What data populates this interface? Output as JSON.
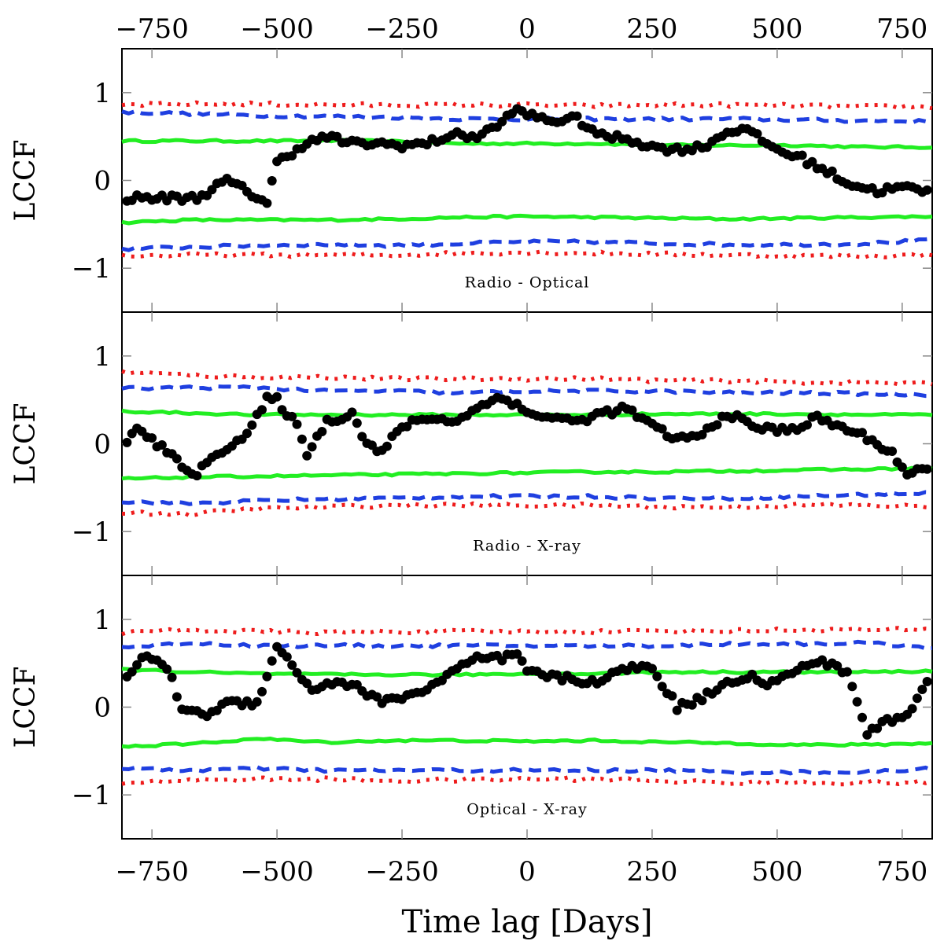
{
  "chart_data": {
    "type": "scatter",
    "xlabel": "Time lag [Days]",
    "xlim": [
      -810,
      810
    ],
    "ylim": [
      -1.5,
      1.5
    ],
    "x_ticks": [
      -750,
      -500,
      -250,
      0,
      250,
      500,
      750
    ],
    "x_tick_labels": [
      "−750",
      "−500",
      "−250",
      "0",
      "250",
      "500",
      "750"
    ],
    "y_ticks": [
      -1,
      0,
      1
    ],
    "y_tick_labels": [
      "−1",
      "0",
      "1"
    ],
    "colors": {
      "lccf": "#000000",
      "band_1sigma": "#22ee22",
      "band_2sigma": "#1f3fe0",
      "band_3sigma": "#ee1c1c"
    },
    "panels": [
      {
        "name": "radio-optical",
        "label": "Radio - Optical",
        "ylabel": "LCCF",
        "lccf": {
          "x": [
            -800,
            -660,
            -600,
            -520,
            -500,
            -450,
            -400,
            -350,
            -300,
            -250,
            -200,
            -150,
            -100,
            -50,
            -30,
            0,
            50,
            100,
            150,
            200,
            250,
            300,
            350,
            400,
            430,
            500,
            550,
            600,
            650,
            700,
            750,
            800
          ],
          "y": [
            -0.2,
            -0.2,
            0.0,
            -0.25,
            0.2,
            0.4,
            0.5,
            0.42,
            0.42,
            0.4,
            0.42,
            0.52,
            0.5,
            0.65,
            0.8,
            0.75,
            0.68,
            0.7,
            0.5,
            0.48,
            0.38,
            0.35,
            0.38,
            0.55,
            0.6,
            0.35,
            0.25,
            0.1,
            -0.05,
            -0.12,
            -0.08,
            -0.12
          ]
        },
        "band_1sigma": {
          "upper": [
            0.45,
            0.45,
            0.45,
            0.45,
            0.45,
            0.42,
            0.42,
            0.42,
            0.4,
            0.4,
            0.4,
            0.38,
            0.38
          ],
          "lower": [
            -0.48,
            -0.45,
            -0.45,
            -0.45,
            -0.44,
            -0.42,
            -0.41,
            -0.42,
            -0.43,
            -0.44,
            -0.43,
            -0.42,
            -0.41
          ]
        },
        "band_2sigma": {
          "upper": [
            0.78,
            0.76,
            0.74,
            0.73,
            0.72,
            0.7,
            0.7,
            0.7,
            0.7,
            0.7,
            0.69,
            0.68,
            0.67
          ],
          "lower": [
            -0.78,
            -0.76,
            -0.74,
            -0.73,
            -0.74,
            -0.72,
            -0.7,
            -0.7,
            -0.72,
            -0.73,
            -0.73,
            -0.72,
            -0.68
          ]
        },
        "band_3sigma": {
          "upper": [
            0.86,
            0.87,
            0.87,
            0.86,
            0.86,
            0.86,
            0.86,
            0.85,
            0.86,
            0.86,
            0.85,
            0.84,
            0.84
          ],
          "lower": [
            -0.86,
            -0.85,
            -0.85,
            -0.85,
            -0.85,
            -0.83,
            -0.82,
            -0.83,
            -0.84,
            -0.85,
            -0.86,
            -0.86,
            -0.85
          ]
        }
      },
      {
        "name": "radio-xray",
        "label": "Radio - X-ray",
        "ylabel": "LCCF",
        "lccf": {
          "x": [
            -800,
            -780,
            -750,
            -700,
            -660,
            -620,
            -560,
            -520,
            -500,
            -460,
            -440,
            -400,
            -350,
            -320,
            -290,
            -250,
            -200,
            -150,
            -100,
            -50,
            0,
            50,
            100,
            150,
            200,
            250,
            300,
            350,
            400,
            450,
            500,
            550,
            580,
            620,
            650,
            700,
            730,
            760,
            800
          ],
          "y": [
            0.05,
            0.15,
            0.05,
            -0.2,
            -0.35,
            -0.1,
            0.1,
            0.5,
            0.5,
            0.2,
            -0.1,
            0.25,
            0.35,
            0.0,
            -0.1,
            0.2,
            0.3,
            0.25,
            0.4,
            0.55,
            0.35,
            0.3,
            0.25,
            0.35,
            0.4,
            0.2,
            0.05,
            0.1,
            0.35,
            0.2,
            0.15,
            0.2,
            0.3,
            0.2,
            0.15,
            0.0,
            -0.1,
            -0.35,
            -0.3
          ]
        },
        "band_1sigma": {
          "upper": [
            0.37,
            0.35,
            0.33,
            0.33,
            0.33,
            0.33,
            0.33,
            0.33,
            0.34,
            0.34,
            0.34,
            0.33,
            0.33
          ],
          "lower": [
            -0.4,
            -0.38,
            -0.37,
            -0.36,
            -0.35,
            -0.34,
            -0.33,
            -0.32,
            -0.32,
            -0.31,
            -0.3,
            -0.29,
            -0.28
          ]
        },
        "band_2sigma": {
          "upper": [
            0.63,
            0.64,
            0.64,
            0.6,
            0.6,
            0.58,
            0.6,
            0.6,
            0.6,
            0.58,
            0.58,
            0.57,
            0.56
          ],
          "lower": [
            -0.66,
            -0.68,
            -0.65,
            -0.63,
            -0.62,
            -0.6,
            -0.6,
            -0.6,
            -0.62,
            -0.62,
            -0.6,
            -0.58,
            -0.56
          ]
        },
        "band_3sigma": {
          "upper": [
            0.82,
            0.78,
            0.76,
            0.76,
            0.74,
            0.74,
            0.74,
            0.74,
            0.72,
            0.72,
            0.7,
            0.7,
            0.68
          ],
          "lower": [
            -0.78,
            -0.8,
            -0.74,
            -0.72,
            -0.7,
            -0.7,
            -0.7,
            -0.7,
            -0.72,
            -0.72,
            -0.7,
            -0.7,
            -0.72
          ]
        }
      },
      {
        "name": "optical-xray",
        "label": "Optical - X-ray",
        "ylabel": "LCCF",
        "lccf": {
          "x": [
            -800,
            -760,
            -720,
            -690,
            -650,
            -600,
            -540,
            -500,
            -460,
            -430,
            -380,
            -330,
            -290,
            -250,
            -200,
            -150,
            -100,
            -50,
            -20,
            0,
            50,
            100,
            150,
            200,
            250,
            300,
            350,
            400,
            450,
            480,
            520,
            560,
            600,
            640,
            680,
            720,
            760,
            800
          ],
          "y": [
            0.35,
            0.6,
            0.45,
            0.0,
            -0.1,
            0.05,
            0.05,
            0.7,
            0.4,
            0.2,
            0.3,
            0.2,
            0.05,
            0.12,
            0.2,
            0.4,
            0.55,
            0.55,
            0.6,
            0.4,
            0.35,
            0.3,
            0.3,
            0.45,
            0.45,
            0.0,
            0.1,
            0.3,
            0.35,
            0.25,
            0.35,
            0.5,
            0.5,
            0.4,
            -0.3,
            -0.15,
            -0.1,
            0.3
          ]
        },
        "band_1sigma": {
          "upper": [
            0.43,
            0.4,
            0.38,
            0.37,
            0.37,
            0.37,
            0.38,
            0.38,
            0.4,
            0.4,
            0.4,
            0.4,
            0.41
          ],
          "lower": [
            -0.45,
            -0.42,
            -0.36,
            -0.4,
            -0.38,
            -0.38,
            -0.39,
            -0.38,
            -0.4,
            -0.41,
            -0.43,
            -0.43,
            -0.41
          ]
        },
        "band_2sigma": {
          "upper": [
            0.68,
            0.73,
            0.7,
            0.7,
            0.7,
            0.7,
            0.7,
            0.7,
            0.7,
            0.72,
            0.72,
            0.73,
            0.68
          ],
          "lower": [
            -0.7,
            -0.72,
            -0.7,
            -0.72,
            -0.72,
            -0.72,
            -0.72,
            -0.72,
            -0.72,
            -0.74,
            -0.74,
            -0.74,
            -0.7
          ]
        },
        "band_3sigma": {
          "upper": [
            0.85,
            0.88,
            0.86,
            0.85,
            0.86,
            0.86,
            0.86,
            0.86,
            0.87,
            0.87,
            0.88,
            0.88,
            0.88
          ],
          "lower": [
            -0.86,
            -0.83,
            -0.82,
            -0.82,
            -0.84,
            -0.83,
            -0.82,
            -0.82,
            -0.84,
            -0.86,
            -0.86,
            -0.86,
            -0.86
          ]
        }
      }
    ]
  }
}
